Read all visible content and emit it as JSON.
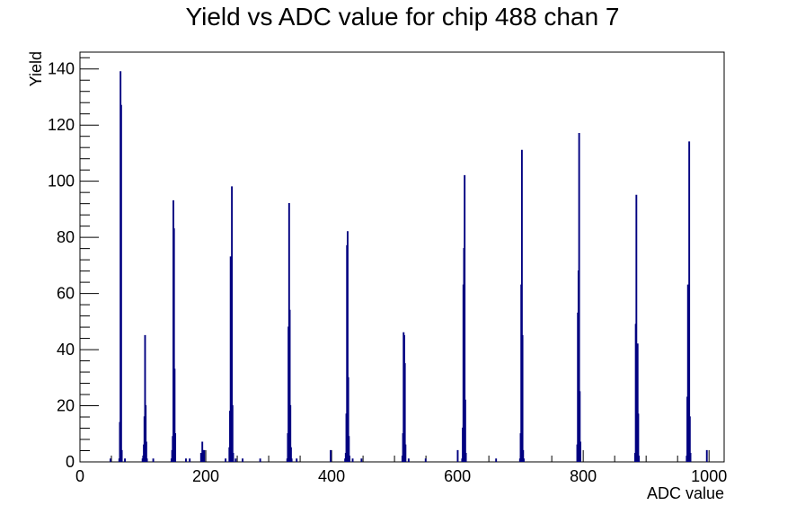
{
  "chart_data": {
    "type": "histogram",
    "title": "Yield vs ADC value for chip 488 chan 7",
    "xlabel": "ADC value",
    "ylabel": "Yield",
    "xlim": [
      0,
      1024
    ],
    "ylim": [
      0,
      146
    ],
    "xticks": [
      0,
      200,
      400,
      600,
      800,
      1000
    ],
    "yticks": [
      0,
      20,
      40,
      60,
      80,
      100,
      120,
      140
    ],
    "line_color": "#000080",
    "grid": false,
    "legend": "none",
    "bins": [
      {
        "x": 48,
        "y": 1
      },
      {
        "x": 62,
        "y": 1
      },
      {
        "x": 63,
        "y": 14
      },
      {
        "x": 64,
        "y": 139
      },
      {
        "x": 65,
        "y": 127
      },
      {
        "x": 66,
        "y": 4
      },
      {
        "x": 71,
        "y": 1
      },
      {
        "x": 99,
        "y": 1
      },
      {
        "x": 100,
        "y": 2
      },
      {
        "x": 101,
        "y": 6
      },
      {
        "x": 102,
        "y": 16
      },
      {
        "x": 103,
        "y": 45
      },
      {
        "x": 104,
        "y": 20
      },
      {
        "x": 105,
        "y": 7
      },
      {
        "x": 106,
        "y": 1
      },
      {
        "x": 116,
        "y": 1
      },
      {
        "x": 145,
        "y": 1
      },
      {
        "x": 146,
        "y": 4
      },
      {
        "x": 147,
        "y": 9
      },
      {
        "x": 148,
        "y": 93
      },
      {
        "x": 149,
        "y": 83
      },
      {
        "x": 150,
        "y": 33
      },
      {
        "x": 151,
        "y": 10
      },
      {
        "x": 168,
        "y": 1
      },
      {
        "x": 174,
        "y": 1
      },
      {
        "x": 192,
        "y": 3
      },
      {
        "x": 194,
        "y": 7
      },
      {
        "x": 195,
        "y": 4
      },
      {
        "x": 197,
        "y": 4
      },
      {
        "x": 231,
        "y": 1
      },
      {
        "x": 237,
        "y": 5
      },
      {
        "x": 238,
        "y": 18
      },
      {
        "x": 239,
        "y": 73
      },
      {
        "x": 240,
        "y": 47
      },
      {
        "x": 241,
        "y": 98
      },
      {
        "x": 242,
        "y": 20
      },
      {
        "x": 243,
        "y": 3
      },
      {
        "x": 247,
        "y": 1
      },
      {
        "x": 258,
        "y": 1
      },
      {
        "x": 286,
        "y": 1
      },
      {
        "x": 329,
        "y": 1
      },
      {
        "x": 330,
        "y": 10
      },
      {
        "x": 331,
        "y": 48
      },
      {
        "x": 332,
        "y": 92
      },
      {
        "x": 333,
        "y": 54
      },
      {
        "x": 334,
        "y": 20
      },
      {
        "x": 335,
        "y": 5
      },
      {
        "x": 336,
        "y": 1
      },
      {
        "x": 344,
        "y": 1
      },
      {
        "x": 398,
        "y": 4
      },
      {
        "x": 421,
        "y": 1
      },
      {
        "x": 422,
        "y": 3
      },
      {
        "x": 423,
        "y": 17
      },
      {
        "x": 424,
        "y": 77
      },
      {
        "x": 425,
        "y": 82
      },
      {
        "x": 426,
        "y": 30
      },
      {
        "x": 427,
        "y": 9
      },
      {
        "x": 428,
        "y": 2
      },
      {
        "x": 433,
        "y": 1
      },
      {
        "x": 447,
        "y": 1
      },
      {
        "x": 512,
        "y": 2
      },
      {
        "x": 513,
        "y": 10
      },
      {
        "x": 514,
        "y": 46
      },
      {
        "x": 515,
        "y": 45
      },
      {
        "x": 516,
        "y": 35
      },
      {
        "x": 517,
        "y": 6
      },
      {
        "x": 522,
        "y": 1
      },
      {
        "x": 549,
        "y": 1
      },
      {
        "x": 600,
        "y": 4
      },
      {
        "x": 607,
        "y": 1
      },
      {
        "x": 608,
        "y": 12
      },
      {
        "x": 609,
        "y": 63
      },
      {
        "x": 610,
        "y": 76
      },
      {
        "x": 611,
        "y": 102
      },
      {
        "x": 612,
        "y": 22
      },
      {
        "x": 613,
        "y": 3
      },
      {
        "x": 661,
        "y": 1
      },
      {
        "x": 699,
        "y": 1
      },
      {
        "x": 700,
        "y": 10
      },
      {
        "x": 701,
        "y": 63
      },
      {
        "x": 702,
        "y": 111
      },
      {
        "x": 703,
        "y": 45
      },
      {
        "x": 704,
        "y": 4
      },
      {
        "x": 705,
        "y": 1
      },
      {
        "x": 790,
        "y": 6
      },
      {
        "x": 791,
        "y": 53
      },
      {
        "x": 792,
        "y": 68
      },
      {
        "x": 793,
        "y": 117
      },
      {
        "x": 794,
        "y": 25
      },
      {
        "x": 795,
        "y": 7
      },
      {
        "x": 882,
        "y": 3
      },
      {
        "x": 883,
        "y": 49
      },
      {
        "x": 884,
        "y": 95
      },
      {
        "x": 885,
        "y": 41
      },
      {
        "x": 886,
        "y": 42
      },
      {
        "x": 887,
        "y": 17
      },
      {
        "x": 888,
        "y": 2
      },
      {
        "x": 964,
        "y": 2
      },
      {
        "x": 965,
        "y": 23
      },
      {
        "x": 966,
        "y": 63
      },
      {
        "x": 967,
        "y": 54
      },
      {
        "x": 968,
        "y": 114
      },
      {
        "x": 969,
        "y": 16
      },
      {
        "x": 970,
        "y": 3
      },
      {
        "x": 996,
        "y": 4
      }
    ]
  }
}
